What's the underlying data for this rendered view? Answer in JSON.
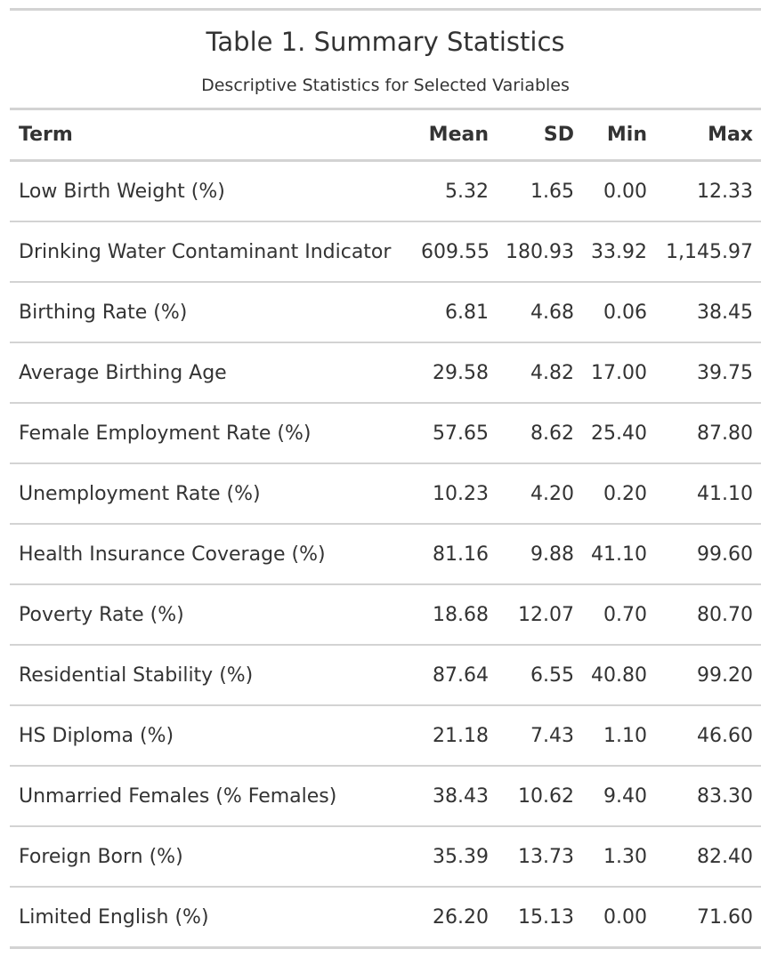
{
  "table": {
    "title": "Table 1. Summary Statistics",
    "subtitle": "Descriptive Statistics for Selected Variables",
    "columns": [
      "Term",
      "Mean",
      "SD",
      "Min",
      "Max"
    ],
    "rows": [
      [
        "Low Birth Weight (%)",
        "5.32",
        "1.65",
        "0.00",
        "12.33"
      ],
      [
        "Drinking Water Contaminant Indicator",
        "609.55",
        "180.93",
        "33.92",
        "1,145.97"
      ],
      [
        "Birthing Rate (%)",
        "6.81",
        "4.68",
        "0.06",
        "38.45"
      ],
      [
        "Average Birthing Age",
        "29.58",
        "4.82",
        "17.00",
        "39.75"
      ],
      [
        "Female Employment Rate (%)",
        "57.65",
        "8.62",
        "25.40",
        "87.80"
      ],
      [
        "Unemployment Rate (%)",
        "10.23",
        "4.20",
        "0.20",
        "41.10"
      ],
      [
        "Health Insurance Coverage (%)",
        "81.16",
        "9.88",
        "41.10",
        "99.60"
      ],
      [
        "Poverty Rate (%)",
        "18.68",
        "12.07",
        "0.70",
        "80.70"
      ],
      [
        "Residential Stability (%)",
        "87.64",
        "6.55",
        "40.80",
        "99.20"
      ],
      [
        "HS Diploma (%)",
        "21.18",
        "7.43",
        "1.10",
        "46.60"
      ],
      [
        "Unmarried Females (% Females)",
        "38.43",
        "10.62",
        "9.40",
        "83.30"
      ],
      [
        "Foreign Born (%)",
        "35.39",
        "13.73",
        "1.30",
        "82.40"
      ],
      [
        "Limited English (%)",
        "26.20",
        "15.13",
        "0.00",
        "71.60"
      ]
    ]
  },
  "colors": {
    "text": "#333333",
    "rule": "#d3d3d3",
    "background": "#ffffff"
  }
}
